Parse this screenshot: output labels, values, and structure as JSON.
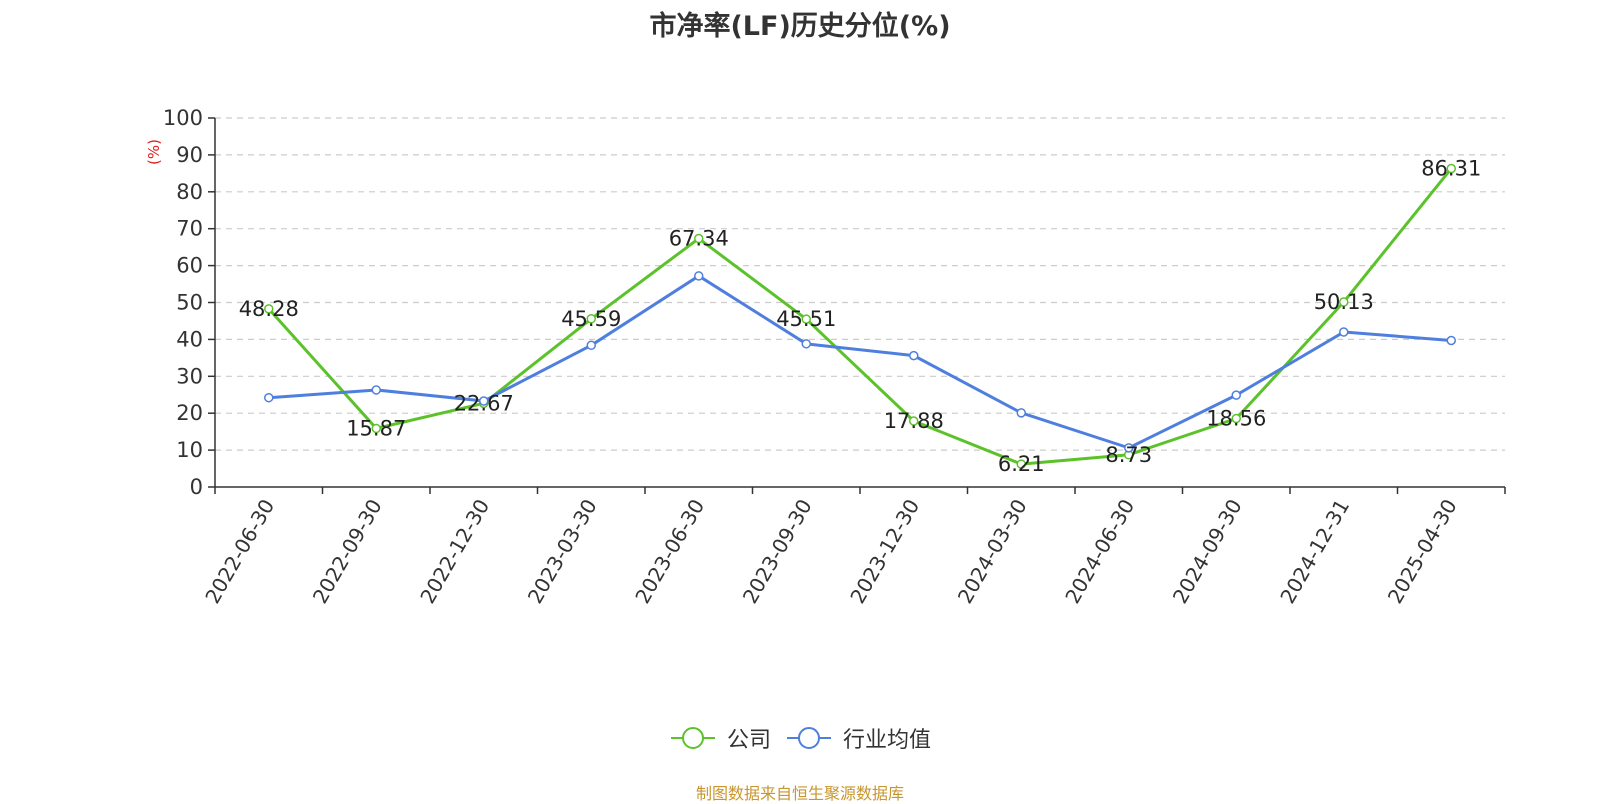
{
  "chart_data": {
    "type": "line",
    "title": "市净率(LF)历史分位(%)",
    "ylabel": "(%)",
    "xlabel": "",
    "ylim": [
      0,
      100
    ],
    "yticks": [
      0,
      10,
      20,
      30,
      40,
      50,
      60,
      70,
      80,
      90,
      100
    ],
    "grid": true,
    "legend_position": "bottom",
    "categories": [
      "2022-06-30",
      "2022-09-30",
      "2022-12-30",
      "2023-03-30",
      "2023-06-30",
      "2023-09-30",
      "2023-12-30",
      "2024-03-30",
      "2024-06-30",
      "2024-09-30",
      "2024-12-31",
      "2025-04-30"
    ],
    "series": [
      {
        "name": "公司",
        "color": "#5cc22b",
        "values": [
          48.28,
          15.87,
          22.67,
          45.59,
          67.34,
          45.51,
          17.88,
          6.21,
          8.73,
          18.56,
          50.13,
          86.31
        ],
        "labels": [
          "48.28",
          "15.87",
          "22.67",
          "45.59",
          "67.34",
          "45.51",
          "17.88",
          "6.21",
          "8.73",
          "18.56",
          "50.13",
          "86.31"
        ]
      },
      {
        "name": "行业均值",
        "color": "#4f7fde",
        "values": [
          24.2,
          26.3,
          23.3,
          38.4,
          57.2,
          38.8,
          35.6,
          20.1,
          10.6,
          24.9,
          42.0,
          39.7
        ]
      }
    ]
  },
  "footer": {
    "source": "制图数据来自恒生聚源数据库"
  }
}
